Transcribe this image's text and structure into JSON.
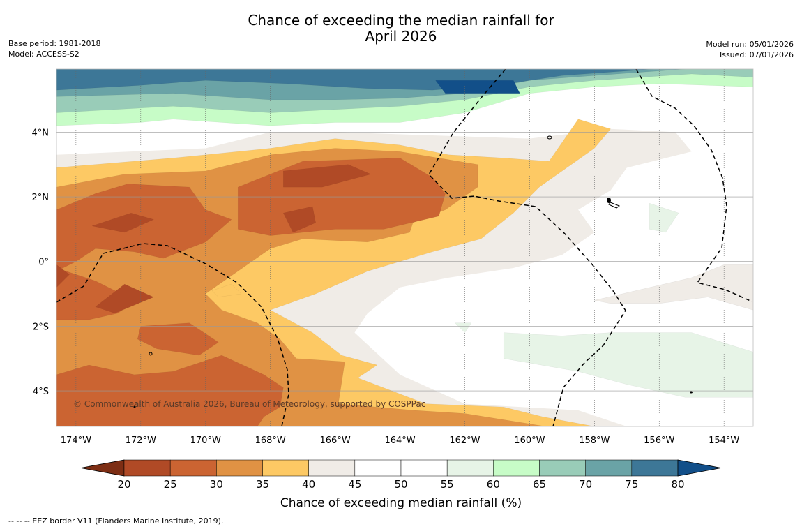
{
  "header": {
    "title_line1": "Chance of exceeding the median rainfall for",
    "title_line2": "April 2026",
    "base_period": "Base period: 1981-2018",
    "model": "Model: ACCESS-S2",
    "model_run": "Model run: 05/01/2026",
    "issued": "Issued: 07/01/2026"
  },
  "map": {
    "copyright": "© Commonwealth of Australia 2026, Bureau of Meteorology, supported by COSPPac"
  },
  "footer": {
    "legend_note": "--  --  -- EEZ border V11 (Flanders Marine Institute, 2019)."
  },
  "chart_data": {
    "type": "heatmap",
    "title": "Chance of exceeding the median rainfall for April 2026",
    "colorbar_label": "Chance of exceeding median rainfall (%)",
    "x_ticks": [
      {
        "value": -174,
        "label": "174°W"
      },
      {
        "value": -172,
        "label": "172°W"
      },
      {
        "value": -170,
        "label": "170°W"
      },
      {
        "value": -168,
        "label": "168°W"
      },
      {
        "value": -166,
        "label": "166°W"
      },
      {
        "value": -164,
        "label": "164°W"
      },
      {
        "value": -162,
        "label": "162°W"
      },
      {
        "value": -160,
        "label": "160°W"
      },
      {
        "value": -158,
        "label": "158°W"
      },
      {
        "value": -156,
        "label": "156°W"
      },
      {
        "value": -154,
        "label": "154°W"
      }
    ],
    "y_ticks": [
      {
        "value": 4,
        "label": "4°N"
      },
      {
        "value": 2,
        "label": "2°N"
      },
      {
        "value": 0,
        "label": "0°"
      },
      {
        "value": -2,
        "label": "2°S"
      },
      {
        "value": -4,
        "label": "4°S"
      }
    ],
    "lon_range": [
      -174.6,
      -153.1
    ],
    "lat_range": [
      -5.1,
      5.95
    ],
    "bins": [
      {
        "range": [
          0,
          20
        ],
        "label": "",
        "color": "#7d2e14"
      },
      {
        "range": [
          20,
          25
        ],
        "label": "20",
        "color": "#b04a26"
      },
      {
        "range": [
          25,
          30
        ],
        "label": "25",
        "color": "#cb6432"
      },
      {
        "range": [
          30,
          35
        ],
        "label": "30",
        "color": "#e09244"
      },
      {
        "range": [
          35,
          40
        ],
        "label": "35",
        "color": "#fdc964"
      },
      {
        "range": [
          40,
          45
        ],
        "label": "40",
        "color": "#f0ece7"
      },
      {
        "range": [
          45,
          50
        ],
        "label": "45",
        "color": "#ffffff"
      },
      {
        "range": [
          50,
          55
        ],
        "label": "50",
        "color": "#ffffff"
      },
      {
        "range": [
          55,
          60
        ],
        "label": "55",
        "color": "#e7f4e7"
      },
      {
        "range": [
          60,
          65
        ],
        "label": "60",
        "color": "#c7fcc7"
      },
      {
        "range": [
          65,
          70
        ],
        "label": "65",
        "color": "#99ccb8"
      },
      {
        "range": [
          70,
          75
        ],
        "label": "70",
        "color": "#6aa3a6"
      },
      {
        "range": [
          75,
          80
        ],
        "label": "75",
        "color": "#3d7797"
      },
      {
        "range": [
          80,
          100
        ],
        "label": "80",
        "color": "#124f89"
      }
    ],
    "regions": [
      {
        "value": 37,
        "desc": "southern dry belt",
        "points": [
          [
            -174.6,
            -5.1
          ],
          [
            -174.6,
            2.9
          ],
          [
            -171,
            3.2
          ],
          [
            -168,
            3.5
          ],
          [
            -166,
            3.8
          ],
          [
            -164,
            3.6
          ],
          [
            -162.5,
            3.3
          ],
          [
            -160.8,
            3.2
          ],
          [
            -159.4,
            3.1
          ],
          [
            -158.5,
            4.4
          ],
          [
            -157.5,
            4.1
          ],
          [
            -158,
            3.5
          ],
          [
            -159.7,
            2.3
          ],
          [
            -160.5,
            1.5
          ],
          [
            -161.5,
            0.7
          ],
          [
            -163,
            0.3
          ],
          [
            -165,
            -0.3
          ],
          [
            -166.6,
            -1.0
          ],
          [
            -168,
            -1.5
          ],
          [
            -166.7,
            -2.2
          ],
          [
            -165.8,
            -2.9
          ],
          [
            -164.7,
            -3.2
          ],
          [
            -165.3,
            -3.6
          ],
          [
            -163.2,
            -4.4
          ],
          [
            -160.8,
            -4.5
          ],
          [
            -159.6,
            -4.8
          ],
          [
            -158,
            -5.1
          ]
        ]
      },
      {
        "value": 32,
        "desc": "central orange core",
        "points": [
          [
            -174.6,
            -5.1
          ],
          [
            -174.6,
            2.3
          ],
          [
            -172.5,
            2.7
          ],
          [
            -170,
            2.8
          ],
          [
            -168,
            3.3
          ],
          [
            -166,
            3.5
          ],
          [
            -164,
            3.4
          ],
          [
            -161.6,
            3.0
          ],
          [
            -161.6,
            2.3
          ],
          [
            -162.6,
            1.6
          ],
          [
            -163.6,
            1.2
          ],
          [
            -163.7,
            0.9
          ],
          [
            -165,
            0.6
          ],
          [
            -167,
            0.7
          ],
          [
            -168,
            0.4
          ],
          [
            -169,
            -0.3
          ],
          [
            -170,
            -1.0
          ],
          [
            -169.5,
            -1.5
          ],
          [
            -168.4,
            -1.9
          ],
          [
            -167.7,
            -2.4
          ],
          [
            -167.2,
            -3.0
          ],
          [
            -165.7,
            -3.1
          ],
          [
            -165.9,
            -4.4
          ],
          [
            -163.6,
            -4.6
          ],
          [
            -162,
            -4.7
          ],
          [
            -159.5,
            -5.1
          ]
        ]
      },
      {
        "value": 27,
        "desc": "north central deficit",
        "points": [
          [
            -169,
            2.3
          ],
          [
            -167,
            3.1
          ],
          [
            -164,
            3.2
          ],
          [
            -163,
            2.6
          ],
          [
            -162.6,
            2.1
          ],
          [
            -162.8,
            1.4
          ],
          [
            -164.5,
            1.0
          ],
          [
            -166,
            1.0
          ],
          [
            -168,
            0.8
          ],
          [
            -169,
            1.0
          ]
        ]
      },
      {
        "value": 27,
        "desc": "western deficit",
        "points": [
          [
            -174.6,
            -0.3
          ],
          [
            -174.6,
            1.6
          ],
          [
            -173.4,
            2.1
          ],
          [
            -172.4,
            2.4
          ],
          [
            -170.5,
            2.3
          ],
          [
            -170,
            1.6
          ],
          [
            -169.2,
            1.3
          ],
          [
            -170,
            0.6
          ],
          [
            -171.3,
            0.1
          ],
          [
            -172.2,
            0.3
          ],
          [
            -173.4,
            0.4
          ],
          [
            -174,
            0.0
          ]
        ]
      },
      {
        "value": 27,
        "desc": "southwest deficit",
        "points": [
          [
            -174.6,
            -4.5
          ],
          [
            -174.6,
            -3.5
          ],
          [
            -173.6,
            -3.2
          ],
          [
            -172.2,
            -3.5
          ],
          [
            -171,
            -3.4
          ],
          [
            -169.5,
            -2.9
          ],
          [
            -168.2,
            -3.5
          ],
          [
            -167.6,
            -3.9
          ],
          [
            -167.7,
            -4.5
          ],
          [
            -168.2,
            -4.8
          ],
          [
            -168.4,
            -5.1
          ],
          [
            -174.6,
            -5.1
          ]
        ]
      },
      {
        "value": 27,
        "desc": "south-central deficit",
        "points": [
          [
            -172,
            -2.0
          ],
          [
            -170.5,
            -1.9
          ],
          [
            -169.6,
            -2.5
          ],
          [
            -170.2,
            -2.9
          ],
          [
            -171.5,
            -2.7
          ],
          [
            -172.1,
            -2.4
          ]
        ]
      },
      {
        "value": 27,
        "desc": "far west deficit",
        "points": [
          [
            -174.6,
            -1.8
          ],
          [
            -174.6,
            -0.2
          ],
          [
            -173.4,
            -0.6
          ],
          [
            -172.2,
            -1.2
          ],
          [
            -172.7,
            -1.6
          ],
          [
            -173.6,
            -1.8
          ]
        ]
      },
      {
        "value": 22,
        "desc": "north core deficit",
        "points": [
          [
            -167.6,
            2.8
          ],
          [
            -165.6,
            3.0
          ],
          [
            -164.9,
            2.7
          ],
          [
            -166.4,
            2.3
          ],
          [
            -167.6,
            2.3
          ]
        ]
      },
      {
        "value": 22,
        "desc": "mid deficit",
        "points": [
          [
            -167.6,
            1.5
          ],
          [
            -166.7,
            1.7
          ],
          [
            -166.6,
            1.2
          ],
          [
            -167.3,
            0.9
          ]
        ]
      },
      {
        "value": 22,
        "desc": "west-mid deficit",
        "points": [
          [
            -173.5,
            1.1
          ],
          [
            -172.3,
            1.5
          ],
          [
            -171.6,
            1.3
          ],
          [
            -172.5,
            0.9
          ]
        ]
      },
      {
        "value": 22,
        "desc": "southwest deficit core",
        "points": [
          [
            -173.4,
            -1.4
          ],
          [
            -172.5,
            -0.7
          ],
          [
            -171.6,
            -1.1
          ],
          [
            -172.8,
            -1.6
          ]
        ]
      },
      {
        "value": 22,
        "desc": "far west core",
        "points": [
          [
            -174.6,
            -0.8
          ],
          [
            -174.6,
            -0.1
          ],
          [
            -174.2,
            -0.4
          ]
        ]
      },
      {
        "value": 37,
        "desc": "island patch",
        "points": [
          [
            -169.8,
            -0.9
          ],
          [
            -169.2,
            -0.7
          ],
          [
            -168.9,
            -1.0
          ],
          [
            -169.6,
            -1.1
          ]
        ]
      },
      {
        "value": 60,
        "desc": "northern wet band",
        "points": [
          [
            -174.6,
            5.95
          ],
          [
            -153.1,
            5.95
          ],
          [
            -153.1,
            5.4
          ],
          [
            -156,
            5.5
          ],
          [
            -158,
            5.4
          ],
          [
            -160,
            5.2
          ],
          [
            -162,
            4.6
          ],
          [
            -164,
            4.3
          ],
          [
            -166,
            4.3
          ],
          [
            -168,
            4.2
          ],
          [
            -171,
            4.4
          ],
          [
            -172,
            4.3
          ],
          [
            -174.6,
            4.2
          ]
        ]
      },
      {
        "value": 67,
        "desc": "teal band",
        "points": [
          [
            -174.6,
            5.95
          ],
          [
            -153.1,
            5.95
          ],
          [
            -153.1,
            5.7
          ],
          [
            -155,
            5.8
          ],
          [
            -158,
            5.6
          ],
          [
            -160,
            5.4
          ],
          [
            -162,
            5.0
          ],
          [
            -164,
            4.8
          ],
          [
            -166,
            4.7
          ],
          [
            -168,
            4.6
          ],
          [
            -171,
            4.8
          ],
          [
            -174.6,
            4.6
          ]
        ]
      },
      {
        "value": 72,
        "desc": "darker teal",
        "points": [
          [
            -174.6,
            5.95
          ],
          [
            -155.2,
            5.95
          ],
          [
            -158,
            5.75
          ],
          [
            -160,
            5.6
          ],
          [
            -162,
            5.2
          ],
          [
            -164,
            5.05
          ],
          [
            -166,
            5.0
          ],
          [
            -168,
            5.0
          ],
          [
            -171,
            5.2
          ],
          [
            -174.6,
            5.1
          ]
        ]
      },
      {
        "value": 77,
        "desc": "deep blue",
        "points": [
          [
            -174.6,
            5.95
          ],
          [
            -156.2,
            5.95
          ],
          [
            -159,
            5.75
          ],
          [
            -161,
            5.45
          ],
          [
            -163,
            5.3
          ],
          [
            -165,
            5.35
          ],
          [
            -167.5,
            5.5
          ],
          [
            -170,
            5.6
          ],
          [
            -172,
            5.45
          ],
          [
            -174.6,
            5.3
          ]
        ]
      },
      {
        "value": 82,
        "desc": "strong wet core",
        "points": [
          [
            -162.9,
            5.6
          ],
          [
            -160.5,
            5.6
          ],
          [
            -160.3,
            5.2
          ],
          [
            -162.6,
            5.2
          ]
        ]
      },
      {
        "value": 57,
        "desc": "eastern wet patch",
        "points": [
          [
            -160.8,
            -2.2
          ],
          [
            -159,
            -2.3
          ],
          [
            -157.5,
            -2.2
          ],
          [
            -155,
            -2.2
          ],
          [
            -153.1,
            -2.8
          ],
          [
            -153.1,
            -4.2
          ],
          [
            -155.2,
            -4.2
          ],
          [
            -157,
            -3.8
          ],
          [
            -158.5,
            -3.4
          ],
          [
            -160.8,
            -3.0
          ]
        ]
      },
      {
        "value": 57,
        "desc": "central wet patch",
        "points": [
          [
            -156.3,
            1.8
          ],
          [
            -155.4,
            1.5
          ],
          [
            -155.8,
            0.9
          ],
          [
            -156.3,
            1.0
          ]
        ]
      },
      {
        "value": 57,
        "desc": "small wet patch",
        "points": [
          [
            -162.3,
            -1.9
          ],
          [
            -161.8,
            -1.9
          ],
          [
            -162.0,
            -2.2
          ]
        ]
      },
      {
        "value": 42,
        "desc": "eastern neutral band",
        "points": [
          [
            -155,
            -0.5
          ],
          [
            -154,
            -0.1
          ],
          [
            -153.1,
            -0.1
          ],
          [
            -153.1,
            -1.5
          ],
          [
            -154.5,
            -1.1
          ],
          [
            -156,
            -1.3
          ],
          [
            -157.5,
            -1.3
          ],
          [
            -158,
            -1.2
          ]
        ]
      }
    ]
  }
}
